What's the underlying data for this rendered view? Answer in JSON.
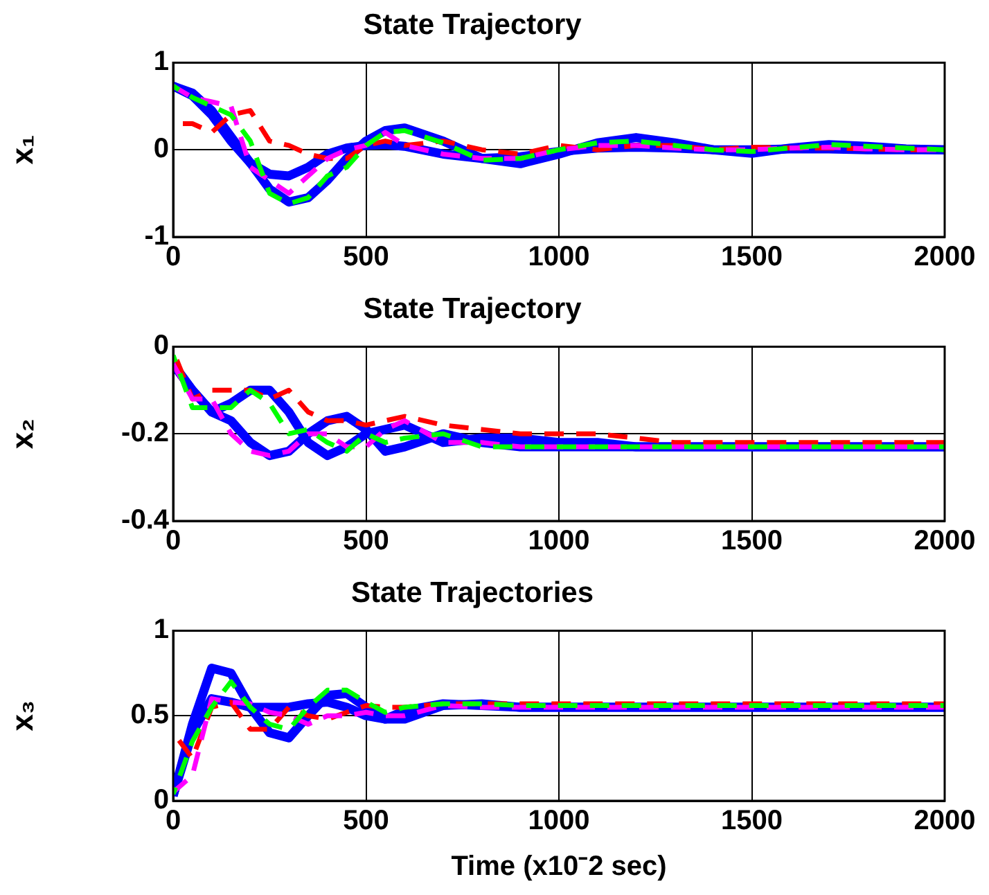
{
  "chart_data": [
    {
      "type": "line",
      "title": "State Trajectory",
      "ylabel": "x₁",
      "x": [
        0,
        50,
        100,
        150,
        200,
        250,
        300,
        350,
        400,
        450,
        500,
        550,
        600,
        700,
        800,
        900,
        1000,
        1100,
        1200,
        1300,
        1400,
        1500,
        1600,
        1700,
        1800,
        1900,
        2000
      ],
      "xlim": [
        0,
        2000
      ],
      "xticks": [
        0,
        500,
        1000,
        1500,
        2000
      ],
      "ylim": [
        -1,
        1
      ],
      "yticks": [
        -1,
        0,
        1
      ],
      "grid": true,
      "marker": "none",
      "series": [
        {
          "color": "#0000ff",
          "line_style": "solid",
          "values": [
            0.73,
            0.65,
            0.45,
            0.15,
            -0.15,
            -0.45,
            -0.6,
            -0.55,
            -0.35,
            -0.1,
            0.1,
            0.22,
            0.25,
            0.1,
            -0.1,
            -0.16,
            -0.05,
            0.08,
            0.14,
            0.08,
            0,
            -0.04,
            0.02,
            0.06,
            0.04,
            0.01,
            0
          ]
        },
        {
          "color": "#0000ff",
          "line_style": "solid",
          "values": [
            0.73,
            0.62,
            0.4,
            0.1,
            -0.15,
            -0.28,
            -0.3,
            -0.2,
            -0.05,
            0.02,
            0.05,
            0.06,
            0.04,
            -0.05,
            -0.1,
            -0.08,
            -0.02,
            0.02,
            0.03,
            0.02,
            0,
            0,
            0.01,
            0.01,
            0,
            0,
            0
          ]
        },
        {
          "color": "#ff0000",
          "line_style": "dashed",
          "values": [
            0.3,
            0.3,
            0.2,
            0.4,
            0.45,
            0.1,
            0.05,
            -0.05,
            -0.1,
            -0.1,
            0.05,
            0.1,
            0.05,
            0.1,
            0,
            -0.05,
            0.05,
            0,
            0.05,
            0.05,
            0,
            0.03,
            0.02,
            0.02,
            0.01,
            0,
            0
          ]
        },
        {
          "color": "#ff00ff",
          "line_style": "dashed",
          "values": [
            0.73,
            0.6,
            0.55,
            0.5,
            -0.2,
            -0.35,
            -0.5,
            -0.3,
            -0.1,
            0,
            0.05,
            0.2,
            0.05,
            -0.05,
            -0.1,
            -0.1,
            0,
            0.05,
            0.05,
            0.02,
            0,
            0,
            0.02,
            0.03,
            0.01,
            0,
            0
          ]
        },
        {
          "color": "#00ff00",
          "line_style": "dashed",
          "values": [
            0.73,
            0.6,
            0.5,
            0.4,
            0.1,
            -0.5,
            -0.62,
            -0.55,
            -0.3,
            -0.2,
            0.05,
            0.2,
            0.22,
            0.08,
            -0.12,
            -0.1,
            0,
            0.08,
            0.1,
            0.05,
            0,
            -0.02,
            0.02,
            0.06,
            0.04,
            0.02,
            0
          ]
        }
      ]
    },
    {
      "type": "line",
      "title": "State Trajectory",
      "ylabel": "x₂",
      "x": [
        0,
        50,
        100,
        150,
        200,
        250,
        300,
        350,
        400,
        450,
        500,
        550,
        600,
        700,
        800,
        900,
        1000,
        1100,
        1200,
        1300,
        1400,
        1500,
        1600,
        1700,
        1800,
        1900,
        2000
      ],
      "xlim": [
        0,
        2000
      ],
      "xticks": [
        0,
        500,
        1000,
        1500,
        2000
      ],
      "ylim": [
        -0.4,
        0
      ],
      "yticks": [
        -0.4,
        -0.2,
        0
      ],
      "grid": true,
      "marker": "none",
      "series": [
        {
          "color": "#0000ff",
          "line_style": "solid",
          "values": [
            -0.04,
            -0.1,
            -0.15,
            -0.17,
            -0.22,
            -0.25,
            -0.24,
            -0.2,
            -0.17,
            -0.16,
            -0.19,
            -0.24,
            -0.23,
            -0.2,
            -0.22,
            -0.23,
            -0.23,
            -0.23,
            -0.23,
            -0.23,
            -0.23,
            -0.23,
            -0.23,
            -0.23,
            -0.23,
            -0.23,
            -0.23
          ]
        },
        {
          "color": "#0000ff",
          "line_style": "solid",
          "values": [
            -0.04,
            -0.1,
            -0.15,
            -0.13,
            -0.1,
            -0.1,
            -0.15,
            -0.22,
            -0.25,
            -0.23,
            -0.2,
            -0.19,
            -0.18,
            -0.22,
            -0.21,
            -0.21,
            -0.22,
            -0.22,
            -0.23,
            -0.23,
            -0.23,
            -0.23,
            -0.23,
            -0.23,
            -0.23,
            -0.23,
            -0.23
          ]
        },
        {
          "color": "#ff0000",
          "line_style": "dashed",
          "values": [
            -0.01,
            -0.12,
            -0.1,
            -0.1,
            -0.1,
            -0.12,
            -0.1,
            -0.15,
            -0.17,
            -0.17,
            -0.18,
            -0.17,
            -0.16,
            -0.18,
            -0.19,
            -0.2,
            -0.2,
            -0.2,
            -0.21,
            -0.22,
            -0.22,
            -0.22,
            -0.22,
            -0.22,
            -0.22,
            -0.22,
            -0.22
          ]
        },
        {
          "color": "#ff00ff",
          "line_style": "dashed",
          "values": [
            -0.04,
            -0.12,
            -0.12,
            -0.2,
            -0.24,
            -0.25,
            -0.24,
            -0.2,
            -0.2,
            -0.23,
            -0.23,
            -0.19,
            -0.17,
            -0.22,
            -0.22,
            -0.23,
            -0.23,
            -0.23,
            -0.23,
            -0.23,
            -0.23,
            -0.23,
            -0.23,
            -0.23,
            -0.23,
            -0.23,
            -0.23
          ]
        },
        {
          "color": "#00ff00",
          "line_style": "dashed",
          "values": [
            -0.02,
            -0.14,
            -0.14,
            -0.14,
            -0.1,
            -0.13,
            -0.2,
            -0.19,
            -0.22,
            -0.24,
            -0.2,
            -0.22,
            -0.21,
            -0.2,
            -0.23,
            -0.23,
            -0.23,
            -0.23,
            -0.23,
            -0.23,
            -0.23,
            -0.23,
            -0.23,
            -0.23,
            -0.23,
            -0.23,
            -0.23
          ]
        }
      ]
    },
    {
      "type": "line",
      "title": "State Trajectories",
      "xlabel": "Time (x10⁻2 sec)",
      "ylabel": "x₃",
      "x": [
        0,
        50,
        100,
        150,
        200,
        250,
        300,
        350,
        400,
        450,
        500,
        550,
        600,
        700,
        800,
        900,
        1000,
        1100,
        1200,
        1300,
        1400,
        1500,
        1600,
        1700,
        1800,
        1900,
        2000
      ],
      "xlim": [
        0,
        2000
      ],
      "xticks": [
        0,
        500,
        1000,
        1500,
        2000
      ],
      "ylim": [
        0,
        1
      ],
      "yticks": [
        0,
        0.5,
        1
      ],
      "grid": true,
      "marker": "none",
      "series": [
        {
          "color": "#0000ff",
          "line_style": "solid",
          "values": [
            0.03,
            0.45,
            0.78,
            0.75,
            0.55,
            0.4,
            0.37,
            0.5,
            0.62,
            0.63,
            0.55,
            0.48,
            0.48,
            0.56,
            0.57,
            0.55,
            0.55,
            0.55,
            0.55,
            0.55,
            0.55,
            0.55,
            0.55,
            0.55,
            0.55,
            0.55,
            0.55
          ]
        },
        {
          "color": "#0000ff",
          "line_style": "solid",
          "values": [
            0.03,
            0.4,
            0.6,
            0.58,
            0.55,
            0.55,
            0.55,
            0.57,
            0.58,
            0.55,
            0.5,
            0.48,
            0.53,
            0.57,
            0.56,
            0.55,
            0.55,
            0.55,
            0.55,
            0.55,
            0.55,
            0.55,
            0.55,
            0.55,
            0.55,
            0.55,
            0.55
          ]
        },
        {
          "color": "#ff0000",
          "line_style": "dashed",
          "values": [
            0.4,
            0.25,
            0.55,
            0.58,
            0.42,
            0.42,
            0.55,
            0.5,
            0.48,
            0.52,
            0.56,
            0.55,
            0.55,
            0.57,
            0.57,
            0.57,
            0.57,
            0.57,
            0.57,
            0.57,
            0.57,
            0.57,
            0.57,
            0.57,
            0.57,
            0.57,
            0.57
          ]
        },
        {
          "color": "#ff00ff",
          "line_style": "dashed",
          "values": [
            0.05,
            0.15,
            0.6,
            0.58,
            0.57,
            0.52,
            0.5,
            0.45,
            0.5,
            0.5,
            0.52,
            0.5,
            0.5,
            0.56,
            0.55,
            0.55,
            0.55,
            0.55,
            0.55,
            0.55,
            0.55,
            0.55,
            0.55,
            0.55,
            0.55,
            0.55,
            0.55
          ]
        },
        {
          "color": "#00ff00",
          "line_style": "dashed",
          "values": [
            0.04,
            0.35,
            0.55,
            0.7,
            0.55,
            0.45,
            0.42,
            0.55,
            0.65,
            0.65,
            0.58,
            0.52,
            0.55,
            0.57,
            0.57,
            0.56,
            0.56,
            0.56,
            0.56,
            0.56,
            0.56,
            0.56,
            0.56,
            0.56,
            0.56,
            0.56,
            0.56
          ]
        }
      ]
    }
  ]
}
